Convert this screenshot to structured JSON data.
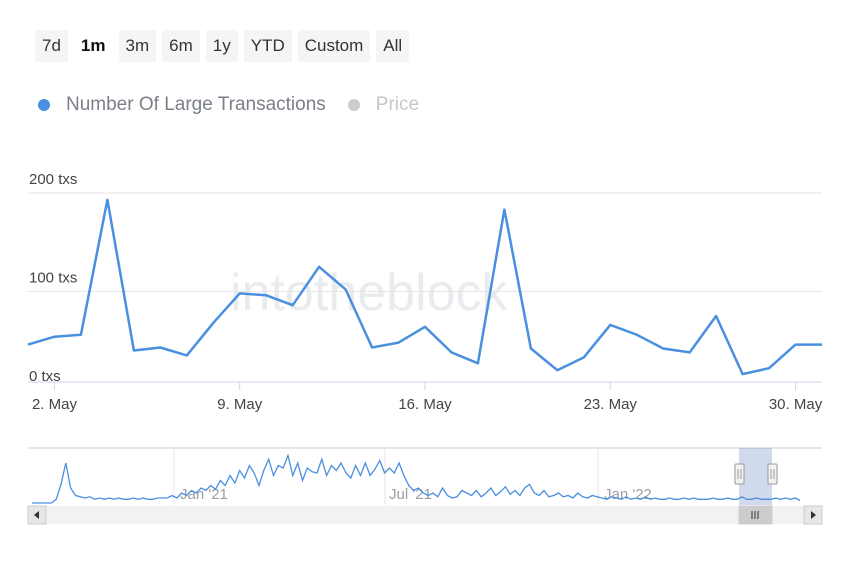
{
  "range_selector": {
    "buttons": [
      "7d",
      "1m",
      "3m",
      "6m",
      "1y",
      "YTD",
      "Custom",
      "All"
    ],
    "active": "1m"
  },
  "legend": {
    "items": [
      {
        "label": "Number Of Large Transactions",
        "color": "#4a8fe0",
        "visible": true
      },
      {
        "label": "Price",
        "color": "#cccccc",
        "visible": false
      }
    ]
  },
  "watermark": "intotheblock",
  "colors": {
    "line": "#4a8fe0",
    "grid": "#e6e6e6",
    "axis": "#ccd6eb",
    "navigator_mask": "rgba(102,133,194,0.3)"
  },
  "chart_data": {
    "type": "line",
    "series": [
      {
        "name": "Number Of Large Transactions",
        "x": [
          "1 May",
          "2 May",
          "3 May",
          "4 May",
          "5 May",
          "6 May",
          "7 May",
          "8 May",
          "9 May",
          "10 May",
          "11 May",
          "12 May",
          "13 May",
          "14 May",
          "15 May",
          "16 May",
          "17 May",
          "18 May",
          "19 May",
          "20 May",
          "21 May",
          "22 May",
          "23 May",
          "24 May",
          "25 May",
          "26 May",
          "27 May",
          "28 May",
          "29 May",
          "30 May",
          "31 May"
        ],
        "values": [
          38,
          46,
          48,
          185,
          32,
          35,
          27,
          60,
          90,
          88,
          78,
          117,
          94,
          35,
          40,
          56,
          30,
          19,
          175,
          34,
          12,
          25,
          58,
          48,
          34,
          30,
          67,
          8,
          14,
          38,
          38
        ]
      }
    ],
    "y_ticks": [
      "0 txs",
      "100 txs",
      "200 txs"
    ],
    "ylim": [
      0,
      200
    ],
    "x_ticks": [
      "2. May",
      "9. May",
      "16. May",
      "23. May",
      "30. May"
    ],
    "grid": true,
    "navigator": {
      "labels": [
        "Jan '21",
        "Jul '21",
        "Jan '22"
      ],
      "values": [
        0,
        0,
        0,
        0,
        0,
        3,
        15,
        32,
        12,
        6,
        5,
        4,
        5,
        3,
        4,
        3,
        4,
        3,
        4,
        3,
        3,
        4,
        3,
        4,
        3,
        3,
        4,
        4,
        4,
        6,
        4,
        8,
        6,
        10,
        8,
        12,
        10,
        14,
        11,
        18,
        14,
        22,
        16,
        26,
        20,
        30,
        24,
        14,
        26,
        35,
        22,
        30,
        28,
        38,
        22,
        32,
        18,
        28,
        25,
        24,
        35,
        22,
        30,
        26,
        32,
        24,
        20,
        30,
        22,
        32,
        22,
        27,
        34,
        24,
        28,
        24,
        32,
        22,
        14,
        10,
        12,
        8,
        6,
        8,
        5,
        12,
        6,
        4,
        5,
        10,
        8,
        6,
        10,
        5,
        8,
        12,
        6,
        9,
        13,
        7,
        10,
        6,
        12,
        15,
        8,
        6,
        10,
        5,
        6,
        8,
        5,
        6,
        4,
        8,
        5,
        4,
        6,
        5,
        4,
        3,
        5,
        4,
        3,
        5,
        3,
        4,
        3,
        5,
        3,
        4,
        3,
        3,
        4,
        3,
        3,
        4,
        3,
        4,
        3,
        3,
        3,
        4,
        3,
        3,
        4,
        3,
        3,
        5,
        3,
        3,
        4,
        3,
        3,
        3,
        4,
        3,
        4,
        3,
        4,
        2
      ]
    }
  }
}
